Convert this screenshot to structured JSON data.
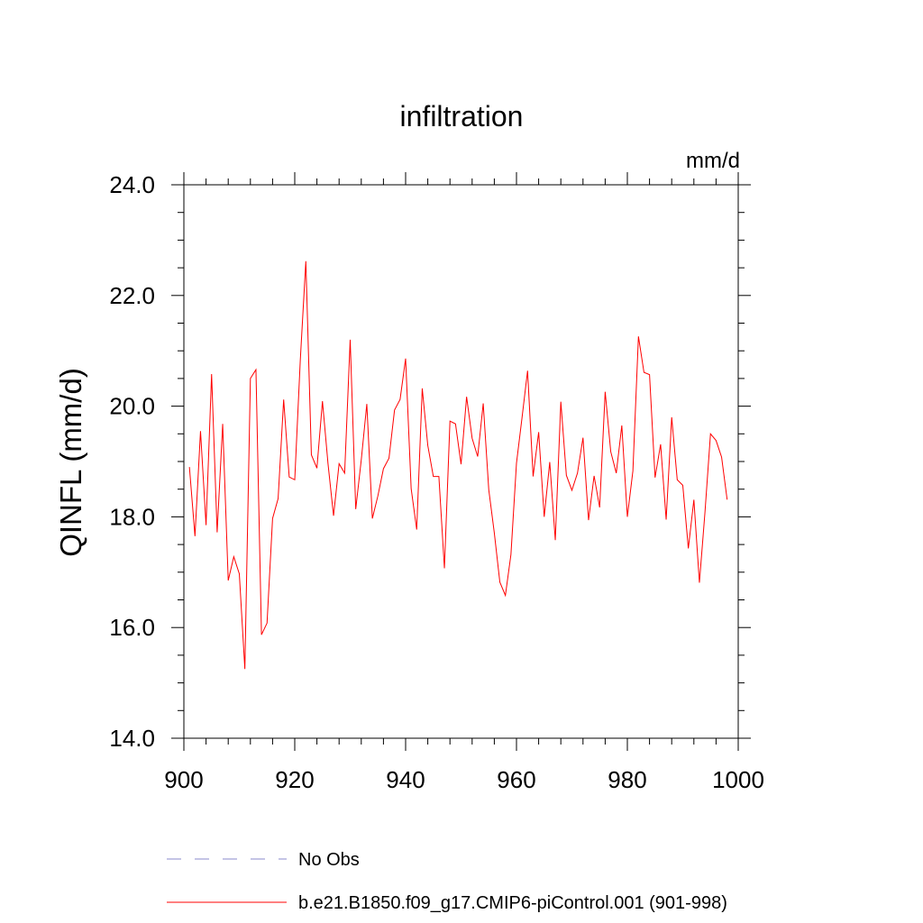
{
  "chart_data": {
    "type": "line",
    "title": "infiltration",
    "units_label": "mm/d",
    "ylabel": "QINFL  (mm/d)",
    "xlabel": "",
    "xlim": [
      900,
      1000
    ],
    "ylim": [
      14,
      24
    ],
    "x_ticks": [
      "900",
      "920",
      "940",
      "960",
      "980",
      "1000"
    ],
    "y_ticks": [
      "14.0",
      "16.0",
      "18.0",
      "20.0",
      "22.0",
      "24.0"
    ],
    "grid": false,
    "legend_position": "bottom",
    "series": [
      {
        "name": "b.e21.B1850.f09_g17.CMIP6-piControl.001 (901-998)",
        "color": "#ff0000",
        "style": "solid",
        "x": [
          901,
          902,
          903,
          904,
          905,
          906,
          907,
          908,
          909,
          910,
          911,
          912,
          913,
          914,
          915,
          916,
          917,
          918,
          919,
          920,
          921,
          922,
          923,
          924,
          925,
          926,
          927,
          928,
          929,
          930,
          931,
          932,
          933,
          934,
          935,
          936,
          937,
          938,
          939,
          940,
          941,
          942,
          943,
          944,
          945,
          946,
          947,
          948,
          949,
          950,
          951,
          952,
          953,
          954,
          955,
          956,
          957,
          958,
          959,
          960,
          961,
          962,
          963,
          964,
          965,
          966,
          967,
          968,
          969,
          970,
          971,
          972,
          973,
          974,
          975,
          976,
          977,
          978,
          979,
          980,
          981,
          982,
          983,
          984,
          985,
          986,
          987,
          988,
          989,
          990,
          991,
          992,
          993,
          994,
          995,
          996,
          997,
          998
        ],
        "values": [
          18.9,
          17.65,
          19.55,
          17.85,
          20.58,
          17.72,
          19.68,
          16.85,
          17.28,
          16.97,
          15.25,
          20.5,
          20.66,
          15.87,
          16.08,
          17.97,
          18.33,
          20.12,
          18.72,
          18.67,
          20.83,
          22.62,
          19.12,
          18.88,
          20.09,
          18.96,
          18.02,
          18.96,
          18.79,
          21.2,
          18.14,
          19.03,
          20.04,
          17.97,
          18.38,
          18.87,
          19.06,
          19.93,
          20.12,
          20.86,
          18.51,
          17.77,
          20.32,
          19.29,
          18.73,
          18.73,
          17.07,
          19.73,
          19.68,
          18.95,
          20.17,
          19.42,
          19.09,
          20.05,
          18.49,
          17.71,
          16.82,
          16.58,
          17.32,
          18.97,
          19.79,
          20.64,
          18.73,
          19.53,
          18.0,
          18.99,
          17.58,
          20.08,
          18.75,
          18.48,
          18.79,
          19.43,
          17.94,
          18.74,
          18.17,
          20.26,
          19.18,
          18.79,
          19.65,
          18.0,
          18.83,
          21.26,
          20.61,
          20.57,
          18.71,
          19.31,
          17.95,
          19.8,
          18.67,
          18.57,
          17.43,
          18.31,
          16.81,
          18.08,
          19.5,
          19.38,
          19.08,
          18.31
        ]
      },
      {
        "name": "No Obs",
        "color": "#8888cc",
        "style": "dashed",
        "x": [],
        "values": []
      }
    ]
  }
}
